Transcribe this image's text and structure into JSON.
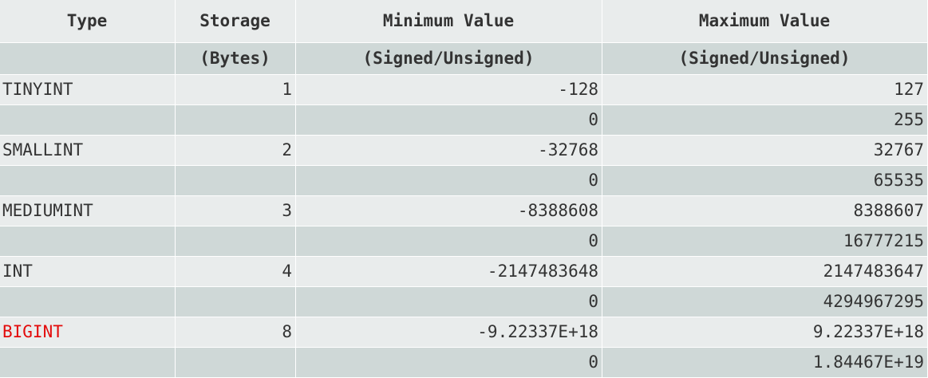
{
  "table": {
    "headers_row1": [
      "Type",
      "Storage",
      "Minimum Value",
      "Maximum Value"
    ],
    "headers_row2": [
      "",
      "(Bytes)",
      "(Signed/Unsigned)",
      "(Signed/Unsigned)"
    ],
    "rows": [
      {
        "type": "TINYINT",
        "storage": "1",
        "min": "-128",
        "max": "127"
      },
      {
        "type": "",
        "storage": "",
        "min": "0",
        "max": "255"
      },
      {
        "type": "SMALLINT",
        "storage": "2",
        "min": "-32768",
        "max": "32767"
      },
      {
        "type": "",
        "storage": "",
        "min": "0",
        "max": "65535"
      },
      {
        "type": "MEDIUMINT",
        "storage": "3",
        "min": "-8388608",
        "max": "8388607"
      },
      {
        "type": "",
        "storage": "",
        "min": "0",
        "max": "16777215"
      },
      {
        "type": "INT",
        "storage": "4",
        "min": "-2147483648",
        "max": "2147483647"
      },
      {
        "type": "",
        "storage": "",
        "min": "0",
        "max": "4294967295"
      },
      {
        "type": "BIGINT",
        "storage": "8",
        "min": "-9.22337E+18",
        "max": "9.22337E+18"
      },
      {
        "type": "",
        "storage": "",
        "min": "0",
        "max": "1.84467E+19"
      }
    ]
  },
  "colors": {
    "row_light": "#e9ecec",
    "row_dark": "#cfd8d7",
    "text": "#333333",
    "highlight": "#e30b0b"
  }
}
